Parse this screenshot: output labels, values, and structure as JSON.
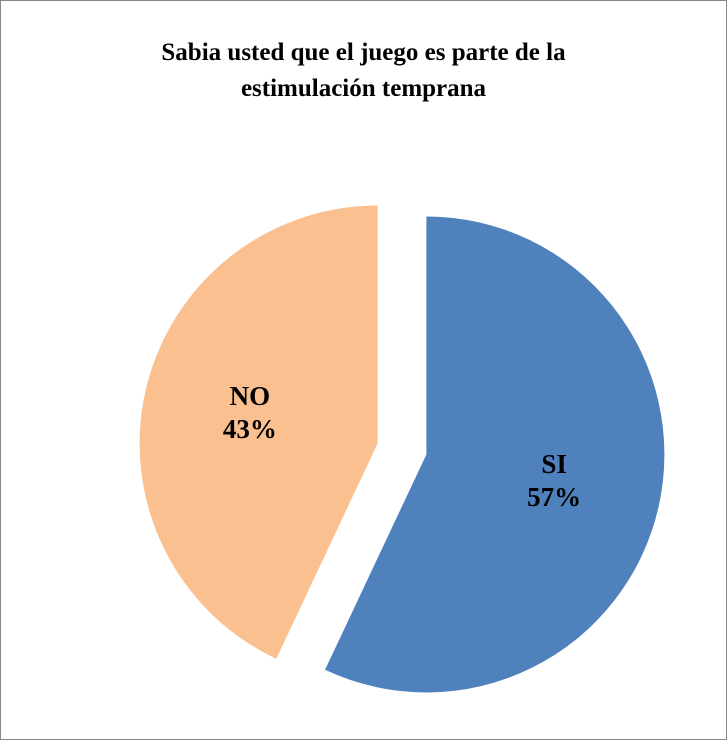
{
  "chart_data": {
    "type": "pie",
    "title": "Sabia usted que el juego es parte de la estimulación temprana",
    "categories": [
      "SI",
      "NO"
    ],
    "values": [
      57,
      43
    ],
    "value_labels": [
      "57%",
      "43%"
    ],
    "colors": [
      "#4f81bd",
      "#fac090"
    ]
  }
}
